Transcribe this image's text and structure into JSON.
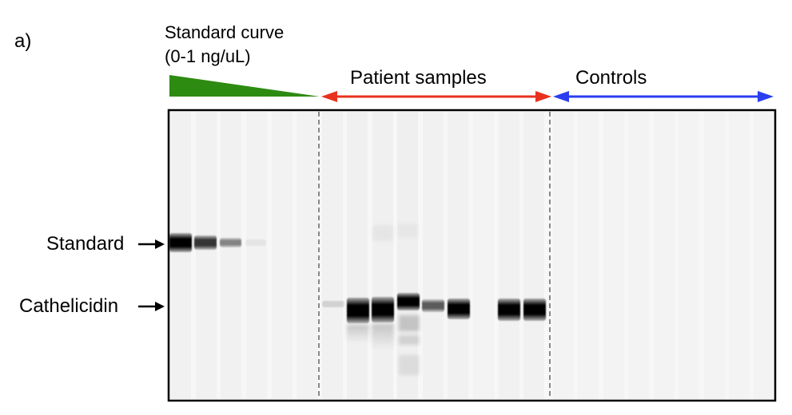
{
  "panel_label": "a)",
  "standard_curve": {
    "title_line1": "Standard curve",
    "title_line2": "(0-1 ng/uL)",
    "wedge_color": "#2e8b12"
  },
  "groups": {
    "patient_label": "Patient samples",
    "patient_color": "#e8321e",
    "controls_label": "Controls",
    "controls_color": "#2a3ef0"
  },
  "markers": {
    "standard_label": "Standard",
    "cathelicidin_label": "Cathelicidin"
  }
}
